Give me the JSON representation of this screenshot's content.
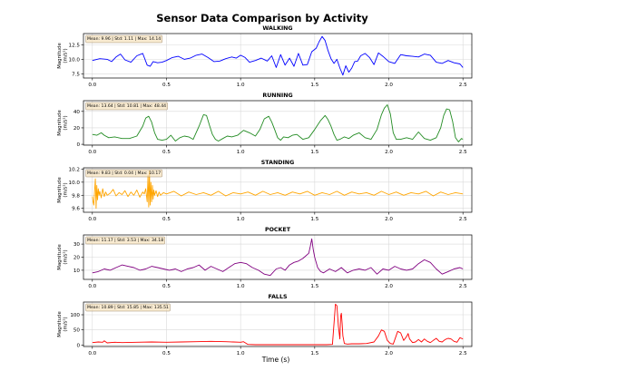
{
  "figure": {
    "title": "Sensor Data Comparison by Activity",
    "xlabel": "Time (s)"
  },
  "chart_data": [
    {
      "type": "line",
      "title": "WALKING",
      "ylabel": "Magnitude\n(m/s²)",
      "color": "#0000ff",
      "stats": "Mean: 9.96 | Std: 1.11 | Max: 14.14",
      "xlim": [
        -0.06,
        2.56
      ],
      "ylim": [
        6.8,
        14.4
      ],
      "xticks": [
        0.0,
        0.5,
        1.0,
        1.5,
        2.0,
        2.5
      ],
      "xticklabels": [
        "0.0",
        "0.5",
        "1.0",
        "1.5",
        "2.0",
        "2.5"
      ],
      "yticks": [
        7.5,
        10.0,
        12.5
      ],
      "yticklabels": [
        "7.5",
        "10.0",
        "12.5"
      ],
      "grid": true,
      "series": [
        {
          "x": [
            0.0,
            0.05,
            0.1,
            0.13,
            0.16,
            0.19,
            0.22,
            0.26,
            0.3,
            0.34,
            0.37,
            0.39,
            0.41,
            0.44,
            0.47,
            0.5,
            0.54,
            0.58,
            0.62,
            0.66,
            0.7,
            0.74,
            0.78,
            0.82,
            0.86,
            0.9,
            0.94,
            0.97,
            1.0,
            1.03,
            1.06,
            1.1,
            1.14,
            1.18,
            1.21,
            1.24,
            1.27,
            1.3,
            1.33,
            1.36,
            1.39,
            1.42,
            1.45,
            1.48,
            1.51,
            1.53,
            1.55,
            1.57,
            1.59,
            1.61,
            1.63,
            1.65,
            1.67,
            1.69,
            1.71,
            1.73,
            1.75,
            1.77,
            1.79,
            1.81,
            1.84,
            1.87,
            1.9,
            1.93,
            1.96,
            2.0,
            2.04,
            2.08,
            2.12,
            2.16,
            2.2,
            2.24,
            2.28,
            2.32,
            2.36,
            2.4,
            2.44,
            2.48,
            2.5
          ],
          "y": [
            9.8,
            10.1,
            10.0,
            9.6,
            10.4,
            10.9,
            9.9,
            9.5,
            10.6,
            11.0,
            9.0,
            8.8,
            9.6,
            9.4,
            9.5,
            9.8,
            10.3,
            10.5,
            10.0,
            10.2,
            10.7,
            10.9,
            10.3,
            9.6,
            9.7,
            10.1,
            10.4,
            10.2,
            10.7,
            10.3,
            9.5,
            9.8,
            10.2,
            9.7,
            10.6,
            8.6,
            10.8,
            9.0,
            10.2,
            8.8,
            11.0,
            9.0,
            9.1,
            11.3,
            11.9,
            13.0,
            13.9,
            13.2,
            11.5,
            10.1,
            9.3,
            10.0,
            8.5,
            7.3,
            8.9,
            7.8,
            8.5,
            9.6,
            9.7,
            10.6,
            11.0,
            10.3,
            9.1,
            11.1,
            10.5,
            9.6,
            9.3,
            10.8,
            10.6,
            10.5,
            10.4,
            10.9,
            10.7,
            9.5,
            9.3,
            9.8,
            9.4,
            9.2,
            8.6
          ]
        }
      ]
    },
    {
      "type": "line",
      "title": "RUNNING",
      "ylabel": "Magnitude\n(m/s²)",
      "color": "#228b22",
      "stats": "Mean: 13.64 | Std: 10.81 | Max: 48.44",
      "xlim": [
        -0.06,
        2.56
      ],
      "ylim": [
        -1,
        53
      ],
      "xticks": [
        0.0,
        0.5,
        1.0,
        1.5,
        2.0,
        2.5
      ],
      "xticklabels": [
        "0.0",
        "0.5",
        "1.0",
        "1.5",
        "2.0",
        "2.5"
      ],
      "yticks": [
        0,
        20,
        40
      ],
      "yticklabels": [
        "0",
        "20",
        "40"
      ],
      "grid": true,
      "series": [
        {
          "x": [
            0.0,
            0.03,
            0.06,
            0.08,
            0.11,
            0.15,
            0.2,
            0.25,
            0.3,
            0.34,
            0.36,
            0.38,
            0.4,
            0.42,
            0.44,
            0.47,
            0.5,
            0.53,
            0.56,
            0.59,
            0.62,
            0.65,
            0.68,
            0.72,
            0.75,
            0.77,
            0.79,
            0.81,
            0.83,
            0.85,
            0.88,
            0.91,
            0.94,
            0.98,
            1.02,
            1.06,
            1.1,
            1.13,
            1.16,
            1.19,
            1.21,
            1.23,
            1.25,
            1.27,
            1.29,
            1.32,
            1.35,
            1.38,
            1.42,
            1.46,
            1.5,
            1.54,
            1.57,
            1.59,
            1.61,
            1.63,
            1.65,
            1.67,
            1.7,
            1.73,
            1.76,
            1.8,
            1.84,
            1.88,
            1.92,
            1.95,
            1.97,
            1.99,
            2.01,
            2.03,
            2.05,
            2.08,
            2.12,
            2.16,
            2.2,
            2.24,
            2.28,
            2.32,
            2.35,
            2.37,
            2.39,
            2.41,
            2.43,
            2.45,
            2.47,
            2.49,
            2.5
          ],
          "y": [
            12,
            11,
            14,
            11,
            8,
            9,
            7,
            7,
            10,
            22,
            32,
            34,
            27,
            14,
            6,
            5,
            6,
            11,
            4,
            8,
            10,
            9,
            6,
            22,
            36,
            35,
            23,
            12,
            6,
            4,
            7,
            10,
            9,
            11,
            17,
            14,
            10,
            18,
            31,
            34,
            27,
            18,
            8,
            5,
            9,
            8,
            11,
            12,
            6,
            8,
            18,
            29,
            35,
            30,
            22,
            12,
            5,
            6,
            9,
            7,
            11,
            14,
            8,
            6,
            18,
            36,
            44,
            48,
            37,
            14,
            6,
            6,
            8,
            6,
            15,
            7,
            5,
            8,
            20,
            35,
            43,
            42,
            28,
            8,
            3,
            7,
            6
          ]
        }
      ]
    },
    {
      "type": "line",
      "title": "STANDING",
      "ylabel": "Magnitude\n(m/s²)",
      "color": "#ffa500",
      "stats": "Mean: 9.83 | Std: 0.04 | Max: 10.17",
      "xlim": [
        -0.06,
        2.56
      ],
      "ylim": [
        9.54,
        10.22
      ],
      "xticks": [
        0.0,
        0.5,
        1.0,
        1.5,
        2.0,
        2.5
      ],
      "xticklabels": [
        "0.0",
        "0.5",
        "1.0",
        "1.5",
        "2.0",
        "2.5"
      ],
      "yticks": [
        9.6,
        9.8,
        10.0,
        10.2
      ],
      "yticklabels": [
        "9.6",
        "9.8",
        "10.0",
        "10.2"
      ],
      "grid": true,
      "series": [
        {
          "x": [
            0.0,
            0.005,
            0.01,
            0.015,
            0.02,
            0.025,
            0.03,
            0.035,
            0.04,
            0.045,
            0.05,
            0.06,
            0.07,
            0.08,
            0.09,
            0.1,
            0.12,
            0.14,
            0.16,
            0.18,
            0.2,
            0.22,
            0.24,
            0.26,
            0.28,
            0.3,
            0.32,
            0.34,
            0.35,
            0.36,
            0.37,
            0.375,
            0.38,
            0.385,
            0.39,
            0.395,
            0.4,
            0.405,
            0.41,
            0.415,
            0.42,
            0.43,
            0.44,
            0.45,
            0.46,
            0.48,
            0.5,
            0.55,
            0.6,
            0.65,
            0.7,
            0.75,
            0.8,
            0.85,
            0.9,
            0.95,
            1.0,
            1.05,
            1.1,
            1.15,
            1.2,
            1.25,
            1.3,
            1.35,
            1.4,
            1.45,
            1.5,
            1.55,
            1.6,
            1.65,
            1.7,
            1.75,
            1.8,
            1.85,
            1.9,
            1.95,
            2.0,
            2.05,
            2.1,
            2.15,
            2.2,
            2.25,
            2.3,
            2.35,
            2.4,
            2.45,
            2.5
          ],
          "y": [
            9.78,
            9.7,
            9.65,
            9.88,
            10.05,
            9.6,
            9.95,
            9.73,
            9.9,
            9.8,
            9.86,
            9.76,
            9.9,
            9.78,
            9.85,
            9.8,
            9.83,
            9.89,
            9.79,
            9.84,
            9.81,
            9.87,
            9.78,
            9.85,
            9.8,
            9.88,
            9.77,
            9.85,
            9.82,
            9.9,
            9.7,
            10.1,
            9.62,
            10.17,
            9.65,
            10.0,
            9.7,
            9.95,
            9.74,
            9.88,
            9.8,
            9.87,
            9.78,
            9.85,
            9.8,
            9.84,
            9.82,
            9.86,
            9.79,
            9.85,
            9.81,
            9.84,
            9.8,
            9.86,
            9.79,
            9.84,
            9.82,
            9.85,
            9.8,
            9.86,
            9.81,
            9.84,
            9.8,
            9.85,
            9.82,
            9.86,
            9.8,
            9.84,
            9.81,
            9.86,
            9.8,
            9.85,
            9.82,
            9.84,
            9.8,
            9.86,
            9.81,
            9.85,
            9.8,
            9.84,
            9.82,
            9.86,
            9.79,
            9.85,
            9.81,
            9.84,
            9.82
          ]
        }
      ]
    },
    {
      "type": "line",
      "title": "POCKET",
      "ylabel": "Magnitude\n(m/s²)",
      "color": "#800080",
      "stats": "Mean: 11.17 | Std: 3.53 | Max: 34.18",
      "xlim": [
        -0.06,
        2.56
      ],
      "ylim": [
        3,
        37
      ],
      "xticks": [
        0.0,
        0.5,
        1.0,
        1.5,
        2.0,
        2.5
      ],
      "xticklabels": [
        "0.0",
        "0.5",
        "1.0",
        "1.5",
        "2.0",
        "2.5"
      ],
      "yticks": [
        10,
        20,
        30
      ],
      "yticklabels": [
        "10",
        "20",
        "30"
      ],
      "grid": true,
      "series": [
        {
          "x": [
            0.0,
            0.04,
            0.08,
            0.12,
            0.16,
            0.2,
            0.24,
            0.28,
            0.32,
            0.36,
            0.4,
            0.44,
            0.48,
            0.52,
            0.56,
            0.6,
            0.64,
            0.68,
            0.72,
            0.76,
            0.8,
            0.84,
            0.88,
            0.92,
            0.96,
            1.0,
            1.04,
            1.08,
            1.12,
            1.16,
            1.2,
            1.24,
            1.27,
            1.3,
            1.33,
            1.36,
            1.39,
            1.42,
            1.44,
            1.46,
            1.47,
            1.48,
            1.49,
            1.5,
            1.52,
            1.54,
            1.56,
            1.6,
            1.64,
            1.68,
            1.72,
            1.76,
            1.8,
            1.84,
            1.88,
            1.92,
            1.96,
            2.0,
            2.04,
            2.08,
            2.12,
            2.16,
            2.2,
            2.24,
            2.28,
            2.32,
            2.36,
            2.4,
            2.44,
            2.48,
            2.5
          ],
          "y": [
            8,
            9,
            11,
            10,
            12,
            14,
            13,
            12,
            10,
            11,
            13,
            12,
            11,
            10,
            11,
            9,
            11,
            12,
            14,
            10,
            13,
            11,
            9,
            12,
            15,
            16,
            15,
            12,
            10,
            7,
            6,
            11,
            12,
            10,
            14,
            16,
            17,
            19,
            21,
            23,
            28,
            34,
            26,
            20,
            12,
            9,
            8,
            11,
            9,
            12,
            8,
            10,
            11,
            10,
            12,
            7,
            11,
            10,
            13,
            11,
            10,
            11,
            15,
            18,
            16,
            11,
            7,
            9,
            11,
            12,
            11
          ]
        }
      ]
    },
    {
      "type": "line",
      "title": "FALLS",
      "ylabel": "Magnitude\n(m/s²)",
      "color": "#ff0000",
      "stats": "Mean: 10.89 | Std: 15.85 | Max: 135.51",
      "xlim": [
        -0.06,
        2.56
      ],
      "ylim": [
        -5,
        142
      ],
      "xticks": [
        0.0,
        0.5,
        1.0,
        1.5,
        2.0,
        2.5
      ],
      "xticklabels": [
        "0.0",
        "0.5",
        "1.0",
        "1.5",
        "2.0",
        "2.5"
      ],
      "yticks": [
        0,
        50,
        100
      ],
      "yticklabels": [
        "0",
        "50",
        "100"
      ],
      "grid": true,
      "series": [
        {
          "x": [
            0.0,
            0.04,
            0.07,
            0.08,
            0.1,
            0.15,
            0.2,
            0.3,
            0.4,
            0.5,
            0.6,
            0.7,
            0.8,
            0.9,
            0.95,
            1.0,
            1.02,
            1.05,
            1.1,
            1.2,
            1.3,
            1.4,
            1.5,
            1.58,
            1.62,
            1.64,
            1.65,
            1.66,
            1.67,
            1.675,
            1.68,
            1.685,
            1.69,
            1.7,
            1.72,
            1.75,
            1.8,
            1.85,
            1.9,
            1.93,
            1.95,
            1.97,
            1.99,
            2.01,
            2.03,
            2.06,
            2.08,
            2.1,
            2.12,
            2.13,
            2.14,
            2.16,
            2.18,
            2.2,
            2.22,
            2.24,
            2.26,
            2.28,
            2.3,
            2.32,
            2.34,
            2.36,
            2.38,
            2.4,
            2.42,
            2.44,
            2.46,
            2.48,
            2.5
          ],
          "y": [
            8,
            10,
            9,
            14,
            7,
            9,
            8,
            9,
            10,
            9,
            10,
            11,
            12,
            11,
            10,
            9,
            11,
            2,
            1,
            1,
            1,
            1,
            1,
            1,
            2,
            135,
            130,
            60,
            20,
            95,
            105,
            70,
            30,
            5,
            3,
            4,
            4,
            5,
            10,
            30,
            50,
            45,
            15,
            5,
            3,
            45,
            40,
            15,
            28,
            38,
            20,
            8,
            10,
            18,
            10,
            20,
            12,
            8,
            15,
            22,
            12,
            10,
            18,
            22,
            20,
            12,
            9,
            24,
            20
          ]
        }
      ]
    }
  ]
}
